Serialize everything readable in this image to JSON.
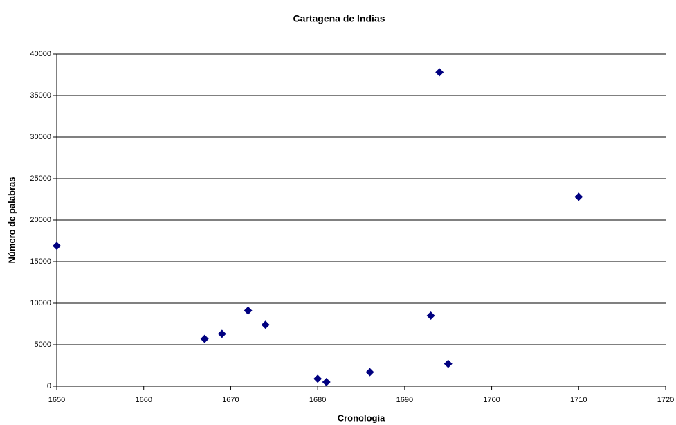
{
  "chart_data": {
    "type": "scatter",
    "title": "Cartagena de Indias",
    "x_label": "Cronología",
    "y_label": "Número de palabras",
    "series": [
      {
        "name": "Cartagena de Indias",
        "color": "#000080",
        "x": [
          1650,
          1667,
          1669,
          1672,
          1674,
          1680,
          1681,
          1686,
          1693,
          1694,
          1695,
          1710
        ],
        "values": [
          16900,
          5700,
          6300,
          9100,
          7400,
          900,
          500,
          1700,
          8500,
          37800,
          2700,
          22800
        ]
      }
    ],
    "xlim": [
      1650,
      1720
    ],
    "xticks": [
      1650,
      1660,
      1670,
      1680,
      1690,
      1700,
      1710,
      1720
    ],
    "ylim": [
      0,
      40000
    ],
    "yticks": [
      0,
      5000,
      10000,
      15000,
      20000,
      25000,
      30000,
      35000,
      40000
    ],
    "grid": true,
    "legend": false
  }
}
